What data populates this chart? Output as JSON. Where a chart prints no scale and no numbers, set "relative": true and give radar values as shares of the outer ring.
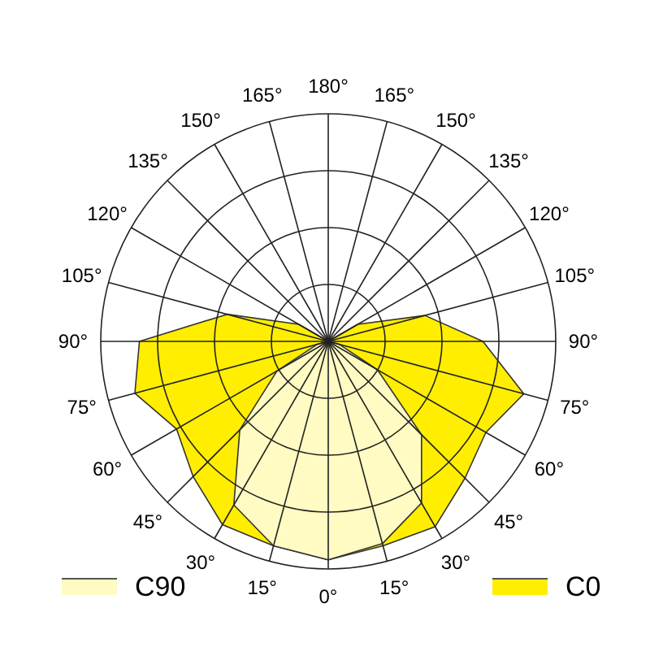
{
  "chart_data": {
    "type": "radar",
    "relative": true,
    "grid": true,
    "legend": "bottom",
    "categories": [
      "180°",
      "165°",
      "150°",
      "135°",
      "120°",
      "105°",
      "90°",
      "75°",
      "60°",
      "45°",
      "30°",
      "15°",
      "0°",
      "15°",
      "30°",
      "45°",
      "60°",
      "75°",
      "90°",
      "105°",
      "120°",
      "135°",
      "150°",
      "165°"
    ],
    "series": [
      {
        "name": "C90",
        "color": "#fffbc2",
        "values": [
          0,
          0,
          0,
          0,
          0,
          0,
          0,
          0.05,
          0.25,
          0.58,
          0.82,
          0.92,
          0.96,
          0.93,
          0.83,
          0.55,
          0.26,
          0.05,
          0,
          0,
          0,
          0,
          0,
          0
        ]
      },
      {
        "name": "C0",
        "color": "#ffee00",
        "values": [
          0,
          0,
          0,
          0,
          0.15,
          0.44,
          0.68,
          0.89,
          0.8,
          0.85,
          0.94,
          0.93,
          0.96,
          0.93,
          0.93,
          0.84,
          0.77,
          0.88,
          0.83,
          0.46,
          0.15,
          0,
          0,
          0
        ]
      }
    ]
  }
}
